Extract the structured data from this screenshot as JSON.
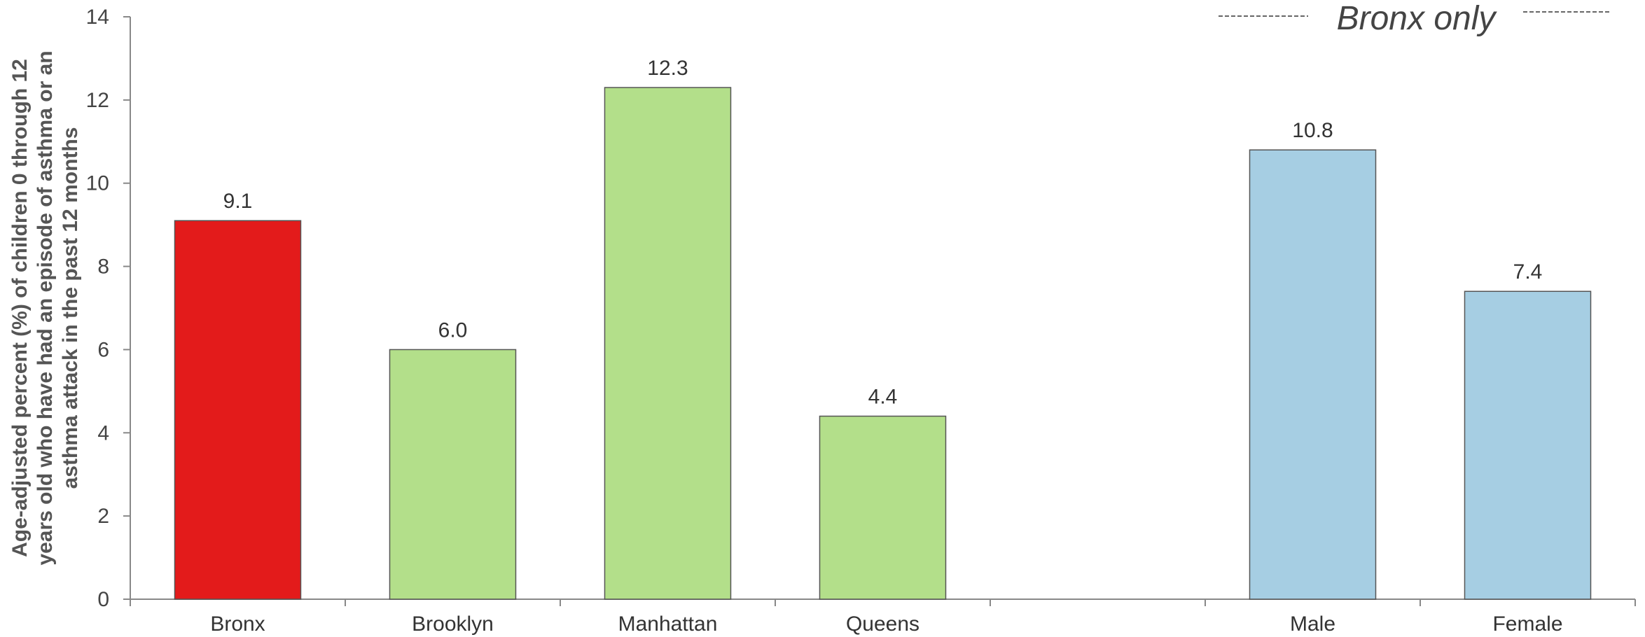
{
  "chart_data": {
    "type": "bar",
    "categories": [
      "Bronx",
      "Brooklyn",
      "Manhattan",
      "Queens",
      "",
      "Male",
      "Female"
    ],
    "values": [
      9.1,
      6.0,
      12.3,
      4.4,
      null,
      10.8,
      7.4
    ],
    "data_labels": [
      "9.1",
      "6.0",
      "12.3",
      "4.4",
      "",
      "10.8",
      "7.4"
    ],
    "bar_colors": [
      "#e31b1b",
      "#b3df8a",
      "#b3df8a",
      "#b3df8a",
      "",
      "#a6cee3",
      "#a6cee3"
    ],
    "ylabel_lines": [
      "Age-adjusted percent (%) of children 0 through 12",
      "years old who have had an episode of asthma or an",
      "asthma attack in the past 12 months"
    ],
    "ylim": [
      0,
      14
    ],
    "yticks": [
      0,
      2,
      4,
      6,
      8,
      10,
      12,
      14
    ],
    "grid": false,
    "legend": "none",
    "annotation": "Bronx only"
  }
}
